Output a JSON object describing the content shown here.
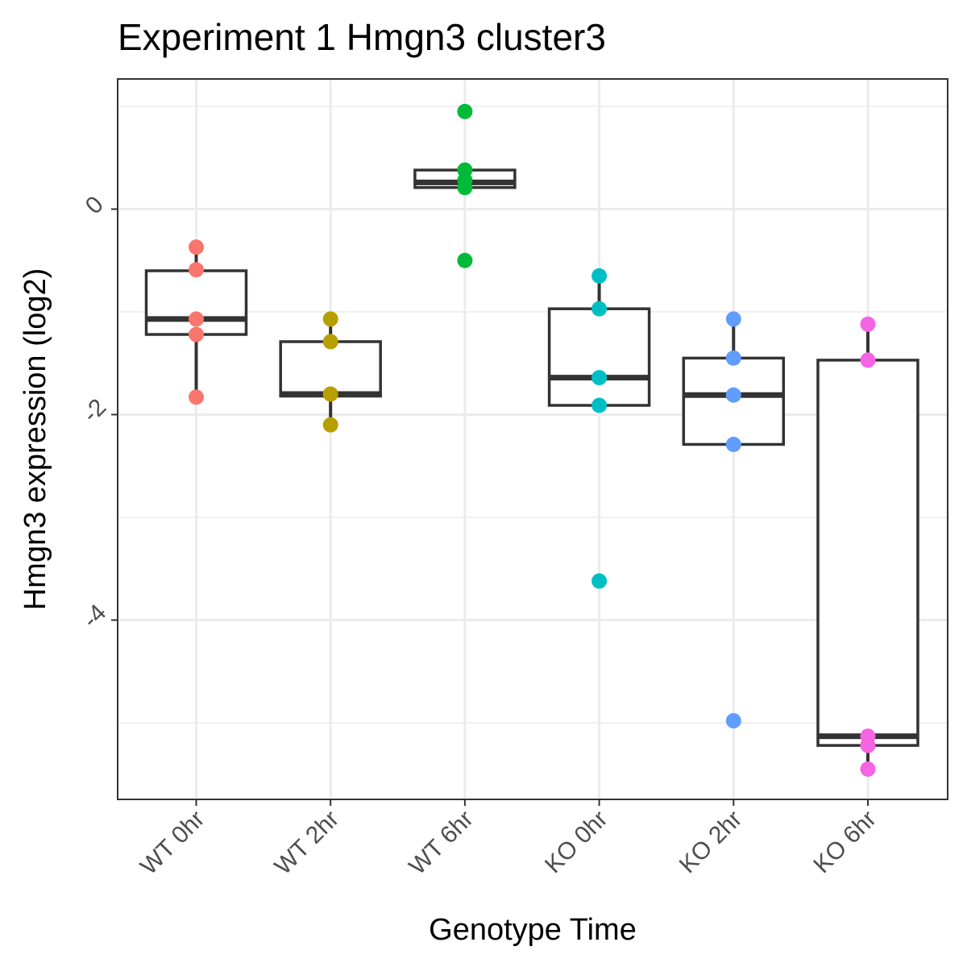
{
  "chart_data": {
    "type": "box",
    "title": "Experiment 1 Hmgn3 cluster3",
    "xlabel": "Genotype Time",
    "ylabel": "Hmgn3 expression (log2)",
    "ylim": [
      -5.75,
      1.25
    ],
    "yticks": [
      0,
      -2,
      -4
    ],
    "ytick_labels": [
      "0",
      "-2",
      "-4"
    ],
    "grid": true,
    "categories": [
      "WT 0hr",
      "WT 2hr",
      "WT 6hr",
      "KO 0hr",
      "KO 2hr",
      "KO 6hr"
    ],
    "colors": [
      "#F8766D",
      "#B79F00",
      "#00BA38",
      "#00BFC4",
      "#619CFF",
      "#F564E3"
    ],
    "boxes": [
      {
        "q1": -1.22,
        "median": -1.07,
        "q3": -0.6,
        "whisker_low": -1.83,
        "whisker_high": -0.37
      },
      {
        "q1": -1.82,
        "median": -1.8,
        "q3": -1.29,
        "whisker_low": -2.1,
        "whisker_high": -1.07
      },
      {
        "q1": 0.21,
        "median": 0.26,
        "q3": 0.38,
        "whisker_low": 0.21,
        "whisker_high": 0.38
      },
      {
        "q1": -1.91,
        "median": -1.64,
        "q3": -0.97,
        "whisker_low": -1.91,
        "whisker_high": -0.65
      },
      {
        "q1": -2.29,
        "median": -1.81,
        "q3": -1.45,
        "whisker_low": -2.29,
        "whisker_high": -1.07
      },
      {
        "q1": -5.22,
        "median": -5.13,
        "q3": -1.47,
        "whisker_low": -5.45,
        "whisker_high": -1.12
      }
    ],
    "points": [
      [
        -0.37,
        -0.59,
        -1.07,
        -1.22,
        -1.83
      ],
      [
        -1.07,
        -1.29,
        -1.8,
        -2.1
      ],
      [
        0.95,
        0.38,
        0.28,
        0.21,
        -0.5
      ],
      [
        -0.65,
        -0.97,
        -1.64,
        -1.91,
        -3.62
      ],
      [
        -1.07,
        -1.45,
        -1.81,
        -2.29,
        -4.98
      ],
      [
        -1.12,
        -1.47,
        -5.13,
        -5.22,
        -5.45
      ]
    ]
  }
}
